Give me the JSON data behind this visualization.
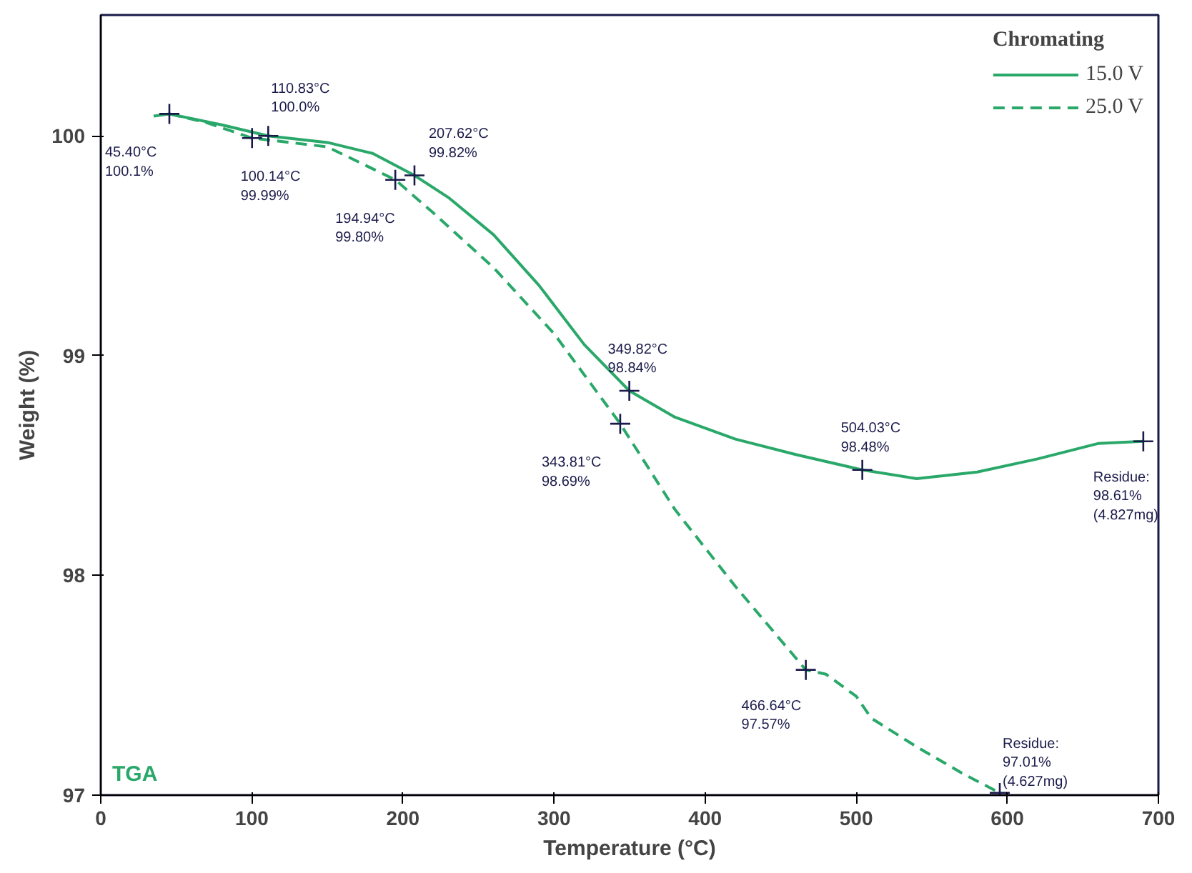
{
  "chart_data": {
    "type": "line",
    "xlabel": "Temperature (°C)",
    "ylabel": "Weight (%)",
    "legend_title": "Chromating",
    "legend": "top right",
    "grid": false,
    "xlim": [
      0,
      700
    ],
    "ylim": [
      97,
      100.55
    ],
    "xticks": [
      0,
      100,
      200,
      300,
      400,
      500,
      600,
      700
    ],
    "yticks": [
      97,
      98,
      99,
      100
    ],
    "series": [
      {
        "name": "15.0 V",
        "color": "#2aa86a",
        "line_style": "solid",
        "x": [
          35,
          45.4,
          80,
          110.83,
          150,
          180,
          207.62,
          230,
          260,
          290,
          320,
          349.82,
          380,
          420,
          460,
          504.03,
          540,
          580,
          620,
          660,
          690
        ],
        "values": [
          100.09,
          100.1,
          100.05,
          100.0,
          99.97,
          99.92,
          99.82,
          99.72,
          99.55,
          99.32,
          99.05,
          98.84,
          98.72,
          98.62,
          98.55,
          98.48,
          98.44,
          98.47,
          98.53,
          98.6,
          98.61
        ]
      },
      {
        "name": "25.0 V",
        "color": "#2aa86a",
        "line_style": "dashed",
        "x": [
          45.4,
          70,
          100.14,
          150,
          194.94,
          220,
          260,
          300,
          343.81,
          380,
          420,
          466.64,
          480,
          500,
          510,
          540,
          570,
          595
        ],
        "values": [
          100.1,
          100.06,
          99.99,
          99.95,
          99.8,
          99.65,
          99.4,
          99.1,
          98.69,
          98.3,
          97.95,
          97.57,
          97.55,
          97.45,
          97.35,
          97.22,
          97.1,
          97.01
        ]
      }
    ],
    "annotations": [
      "TGA",
      {
        "text": "45.40°C\n100.1%",
        "x": 45.4,
        "y": 100.1
      },
      {
        "text": "100.14°C\n99.99%",
        "x": 100.14,
        "y": 99.99
      },
      {
        "text": "110.83°C\n100.0%",
        "x": 110.83,
        "y": 100.0
      },
      {
        "text": "194.94°C\n99.80%",
        "x": 194.94,
        "y": 99.8
      },
      {
        "text": "207.62°C\n99.82%",
        "x": 207.62,
        "y": 99.82
      },
      {
        "text": "343.81°C\n98.69%",
        "x": 343.81,
        "y": 98.69
      },
      {
        "text": "349.82°C\n98.84%",
        "x": 349.82,
        "y": 98.84
      },
      {
        "text": "466.64°C\n97.57%",
        "x": 466.64,
        "y": 97.57
      },
      {
        "text": "504.03°C\n98.48%",
        "x": 504.03,
        "y": 98.48
      },
      {
        "text": "Residue:\n98.61%\n(4.827mg)",
        "x": 690,
        "y": 98.61
      },
      {
        "text": "Residue:\n97.01%\n(4.627mg)",
        "x": 595,
        "y": 97.01
      }
    ]
  }
}
